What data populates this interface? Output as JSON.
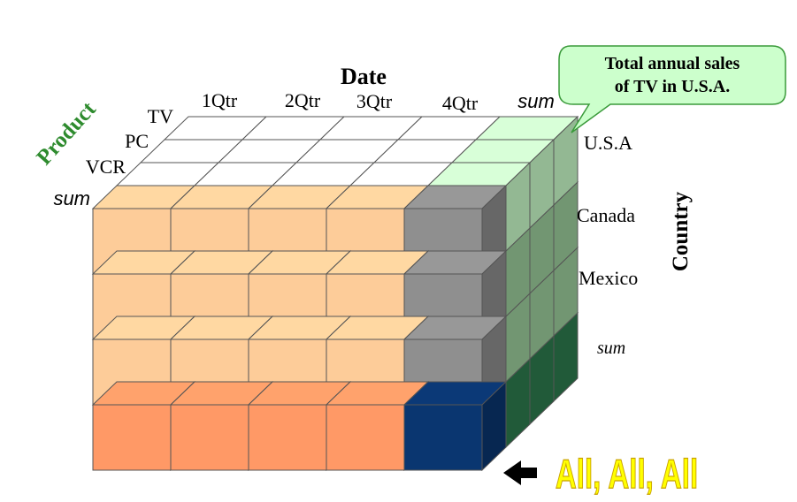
{
  "titles": {
    "date": "Date",
    "product": "Product",
    "country": "Country"
  },
  "date_labels": [
    "1Qtr",
    "2Qtr",
    "3Qtr",
    "4Qtr",
    "sum"
  ],
  "product_labels": [
    "TV",
    "PC",
    "VCR",
    "sum"
  ],
  "country_labels": [
    "U.S.A",
    "Canada",
    "Mexico",
    "sum"
  ],
  "callout": {
    "line1": "Total annual sales",
    "line2": "of  TV in U.S.A."
  },
  "all_label": "All, All, All",
  "colors": {
    "peach": "#fdcc99",
    "peach_dark": "#ff9966",
    "gray": "#8f8f8f",
    "navy": "#0a3670",
    "light_green": "#ccffcc",
    "mid_green": "#9fd19f",
    "dark_green": "#2e7d4f",
    "product_title": "#2e8b2e",
    "all_text": "#ffff00"
  }
}
